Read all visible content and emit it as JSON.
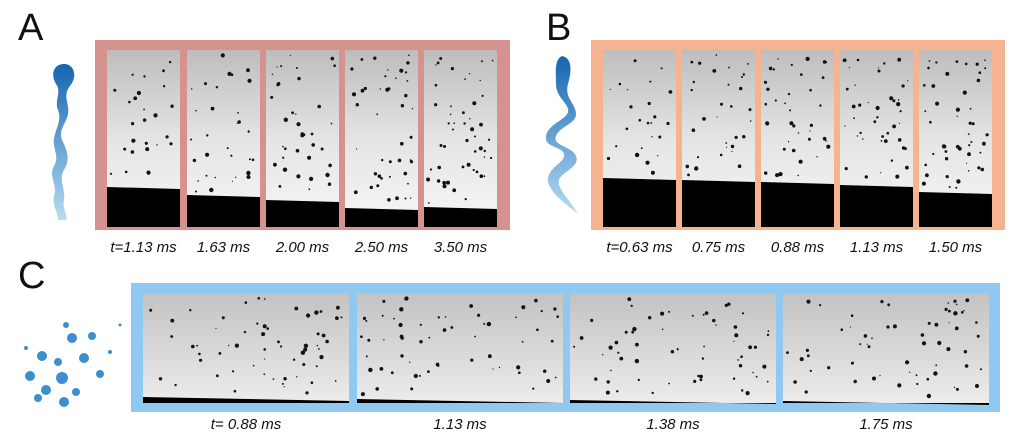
{
  "panels": [
    {
      "label": "A",
      "times": [
        "t=1.13 ms",
        "1.63 ms",
        "2.00 ms",
        "2.50 ms",
        "3.50 ms"
      ]
    },
    {
      "label": "B",
      "times": [
        "t=0.63 ms",
        "0.75 ms",
        "0.88 ms",
        "1.13 ms",
        "1.50 ms"
      ]
    },
    {
      "label": "C",
      "times": [
        "t= 0.88 ms",
        "1.13 ms",
        "1.38 ms",
        "1.75 ms"
      ]
    }
  ]
}
